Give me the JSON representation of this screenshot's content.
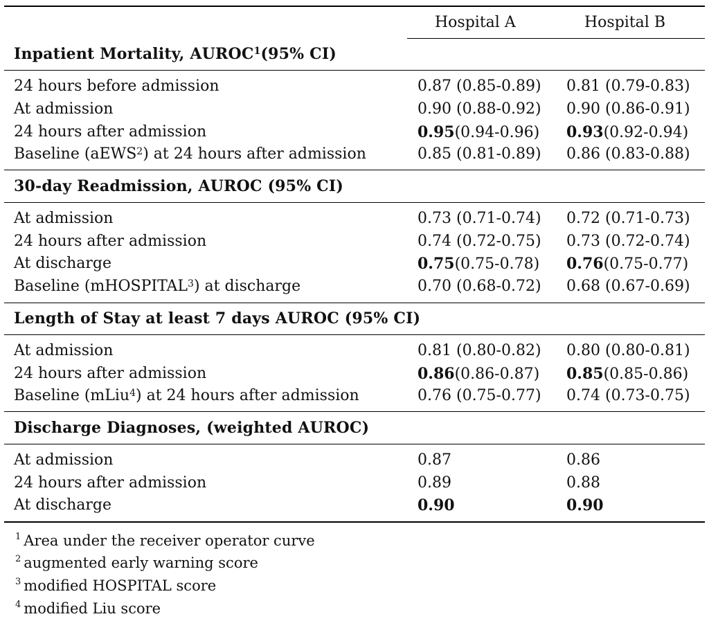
{
  "columns": [
    "Hospital A",
    "Hospital B"
  ],
  "sections": [
    {
      "title": "Inpatient Mortality, AUROC",
      "title_sup": "1",
      "title_suffix": "(95% CI)",
      "rows": [
        {
          "label": "24 hours before admission",
          "a": {
            "v": "0.87",
            "ci": "(0.85-0.89)",
            "bold": false
          },
          "b": {
            "v": "0.81",
            "ci": "(0.79-0.83)",
            "bold": false
          }
        },
        {
          "label": "At admission",
          "a": {
            "v": "0.90",
            "ci": "(0.88-0.92)",
            "bold": false
          },
          "b": {
            "v": "0.90",
            "ci": "(0.86-0.91)",
            "bold": false
          }
        },
        {
          "label": "24 hours after admission",
          "a": {
            "v": "0.95",
            "ci": "(0.94-0.96)",
            "bold": true
          },
          "b": {
            "v": "0.93",
            "ci": "(0.92-0.94)",
            "bold": true
          }
        },
        {
          "label_pre": "Baseline (aEWS",
          "label_sup": "2",
          "label_post": ") at 24 hours after admission",
          "a": {
            "v": "0.85",
            "ci": "(0.81-0.89)",
            "bold": false
          },
          "b": {
            "v": "0.86",
            "ci": "(0.83-0.88)",
            "bold": false
          }
        }
      ]
    },
    {
      "title": "30-day Readmission, AUROC (95% CI)",
      "rows": [
        {
          "label": "At admission",
          "a": {
            "v": "0.73",
            "ci": "(0.71-0.74)",
            "bold": false
          },
          "b": {
            "v": "0.72",
            "ci": "(0.71-0.73)",
            "bold": false
          }
        },
        {
          "label": "24 hours after admission",
          "a": {
            "v": "0.74",
            "ci": "(0.72-0.75)",
            "bold": false
          },
          "b": {
            "v": "0.73",
            "ci": "(0.72-0.74)",
            "bold": false
          }
        },
        {
          "label": "At discharge",
          "a": {
            "v": "0.75",
            "ci": "(0.75-0.78)",
            "bold": true
          },
          "b": {
            "v": "0.76",
            "ci": "(0.75-0.77)",
            "bold": true
          }
        },
        {
          "label_pre": "Baseline (mHOSPITAL",
          "label_sup": "3",
          "label_post": ") at discharge",
          "a": {
            "v": "0.70",
            "ci": "(0.68-0.72)",
            "bold": false
          },
          "b": {
            "v": "0.68",
            "ci": "(0.67-0.69)",
            "bold": false
          }
        }
      ]
    },
    {
      "title": "Length of Stay at least 7 days AUROC (95% CI)",
      "rows": [
        {
          "label": "At admission",
          "a": {
            "v": "0.81",
            "ci": "(0.80-0.82)",
            "bold": false
          },
          "b": {
            "v": "0.80",
            "ci": "(0.80-0.81)",
            "bold": false
          }
        },
        {
          "label": "24 hours after admission",
          "a": {
            "v": "0.86",
            "ci": "(0.86-0.87)",
            "bold": true
          },
          "b": {
            "v": "0.85",
            "ci": "(0.85-0.86)",
            "bold": true
          }
        },
        {
          "label_pre": "Baseline (mLiu",
          "label_sup": "4",
          "label_post": ") at 24 hours after admission",
          "a": {
            "v": "0.76",
            "ci": "(0.75-0.77)",
            "bold": false
          },
          "b": {
            "v": "0.74",
            "ci": "(0.73-0.75)",
            "bold": false
          }
        }
      ]
    },
    {
      "title": "Discharge Diagnoses, (weighted AUROC)",
      "rows": [
        {
          "label": "At admission",
          "a": {
            "v": "0.87",
            "ci": "",
            "bold": false
          },
          "b": {
            "v": "0.86",
            "ci": "",
            "bold": false
          }
        },
        {
          "label": "24 hours after admission",
          "a": {
            "v": "0.89",
            "ci": "",
            "bold": false
          },
          "b": {
            "v": "0.88",
            "ci": "",
            "bold": false
          }
        },
        {
          "label": "At discharge",
          "a": {
            "v": "0.90",
            "ci": "",
            "bold": true
          },
          "b": {
            "v": "0.90",
            "ci": "",
            "bold": true
          }
        }
      ]
    }
  ],
  "footnotes": [
    {
      "mark": "1",
      "text": "Area under the receiver operator curve"
    },
    {
      "mark": "2",
      "text": "augmented early warning score"
    },
    {
      "mark": "3",
      "text": "modified HOSPITAL score"
    },
    {
      "mark": "4",
      "text": "modified Liu score"
    }
  ]
}
